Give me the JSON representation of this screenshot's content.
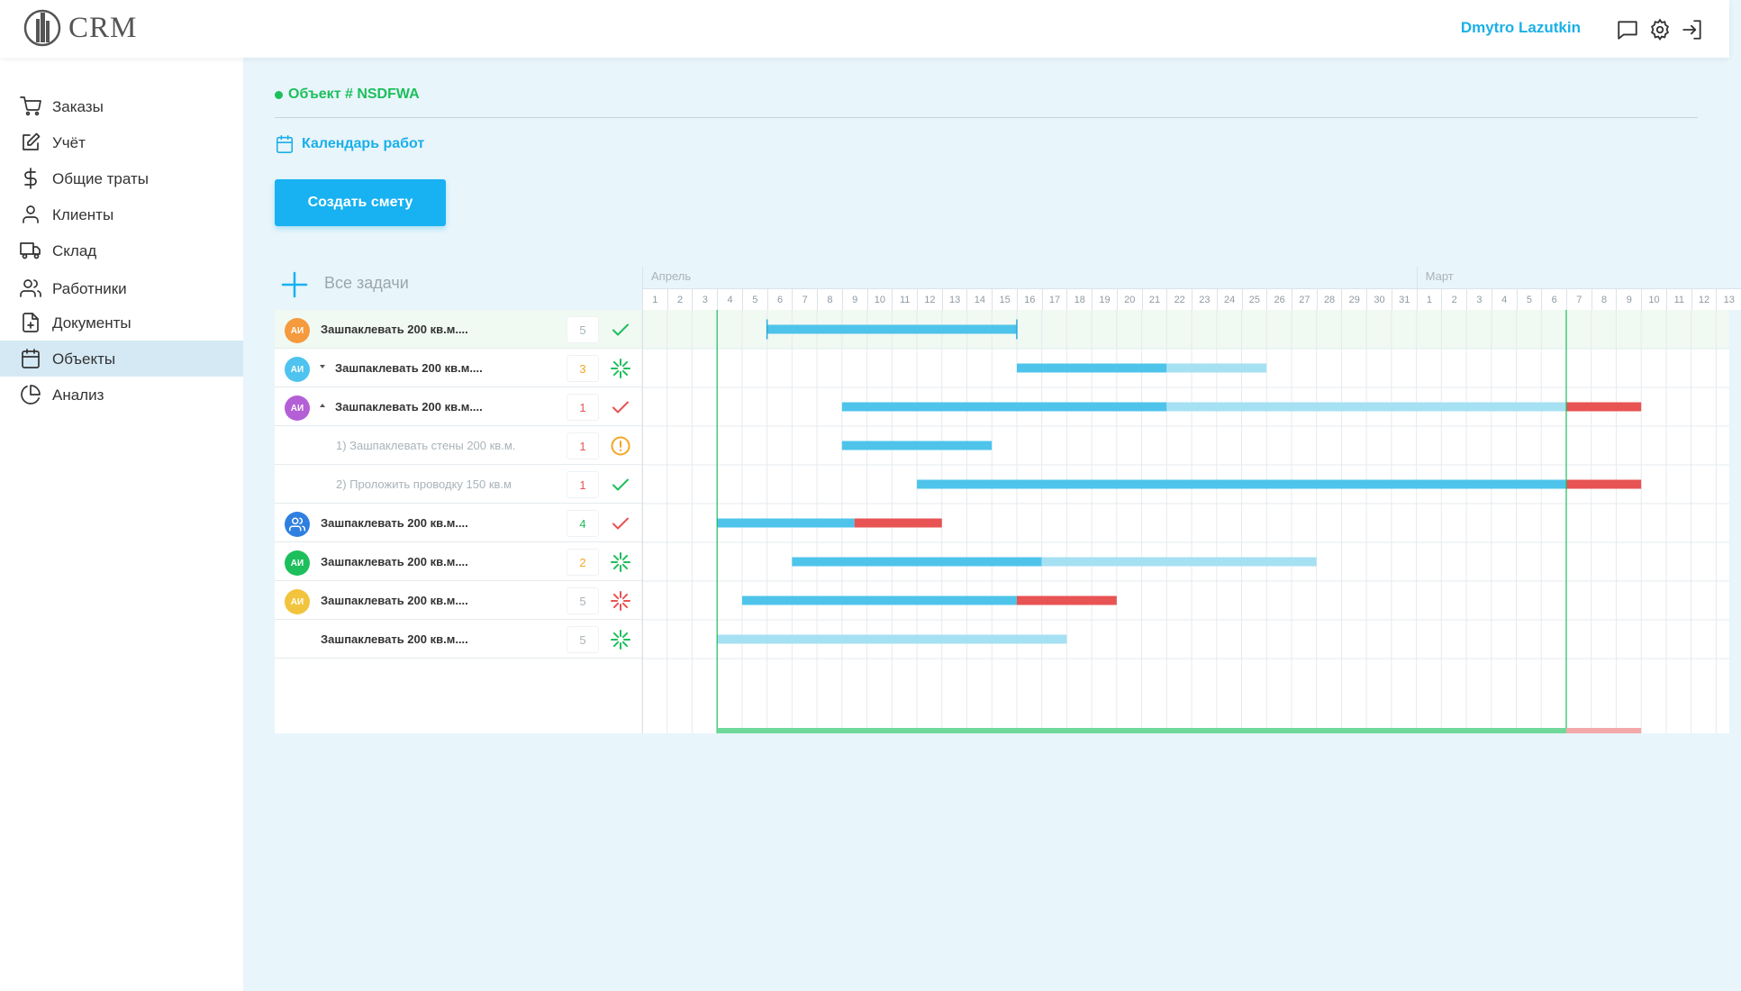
{
  "app": {
    "logo_text": "CRM",
    "user_name": "Dmytro Lazutkin"
  },
  "header_icons": [
    "chat-icon",
    "gear-icon",
    "logout-icon"
  ],
  "sidebar": {
    "items": [
      {
        "label": "Заказы",
        "icon": "cart-icon",
        "active": false
      },
      {
        "label": "Учёт",
        "icon": "edit-icon",
        "active": false
      },
      {
        "label": "Общие траты",
        "icon": "dollar-icon",
        "active": false
      },
      {
        "label": "Клиенты",
        "icon": "user-icon",
        "active": false
      },
      {
        "label": "Склад",
        "icon": "truck-icon",
        "active": false
      },
      {
        "label": "Работники",
        "icon": "users-icon",
        "active": false
      },
      {
        "label": "Документы",
        "icon": "file-plus-icon",
        "active": false
      },
      {
        "label": "Объекты",
        "icon": "calendar-icon",
        "active": true
      },
      {
        "label": "Анализ",
        "icon": "pie-chart-icon",
        "active": false
      }
    ]
  },
  "main": {
    "object_title": "Объект # NSDFWA",
    "calendar_link": "Календарь работ",
    "create_button": "Создать смету"
  },
  "gantt": {
    "all_tasks_label": "Все задачи",
    "months": [
      {
        "name": "Апрель",
        "start_index": 0
      },
      {
        "name": "Март",
        "start_index": 31
      }
    ],
    "days": [
      1,
      2,
      3,
      4,
      5,
      6,
      7,
      8,
      9,
      10,
      11,
      12,
      13,
      14,
      15,
      16,
      17,
      18,
      19,
      20,
      21,
      22,
      23,
      24,
      25,
      26,
      27,
      28,
      29,
      30,
      31,
      1,
      2,
      3,
      4,
      5,
      6,
      7,
      8,
      9,
      10,
      11,
      12,
      13
    ],
    "today_index": 3,
    "deadline_index": 37,
    "colors": {
      "done": "#4ec4eb",
      "planned": "#a6e0f3",
      "overdue": "#e85353",
      "green": "#1cbf5c",
      "orange": "#f5a623",
      "red": "#e85353"
    },
    "tasks": [
      {
        "name": "Зашпаклевать 200 кв.м....",
        "avatar": "АИ",
        "avatar_color": "#f59a3d",
        "count": "5",
        "count_color": "#a9b3b9",
        "status": "check-icon",
        "status_color": "#1cbf5c",
        "level": 0,
        "caret": "",
        "highlight": true,
        "bars": [
          {
            "start": 5,
            "end": 15,
            "type": "done",
            "bracket": true
          }
        ]
      },
      {
        "name": "Зашпаклевать 200 кв.м....",
        "avatar": "АИ",
        "avatar_color": "#4fc3ef",
        "count": "3",
        "count_color": "#f5a623",
        "status": "loading-icon",
        "status_color": "#1cbf5c",
        "level": 0,
        "caret": "down",
        "highlight": false,
        "bars": [
          {
            "start": 15,
            "end": 21,
            "type": "done"
          },
          {
            "start": 21,
            "end": 25,
            "type": "planned"
          }
        ]
      },
      {
        "name": "Зашпаклевать 200 кв.м....",
        "avatar": "АИ",
        "avatar_color": "#b45fd6",
        "count": "1",
        "count_color": "#e85353",
        "status": "check-icon",
        "status_color": "#e85353",
        "level": 0,
        "caret": "up",
        "highlight": false,
        "bars": [
          {
            "start": 8,
            "end": 21,
            "type": "done"
          },
          {
            "start": 21,
            "end": 37,
            "type": "planned"
          },
          {
            "start": 37,
            "end": 40,
            "type": "overdue"
          }
        ]
      },
      {
        "name": "1) Зашпаклевать стены 200 кв.м.",
        "avatar": "",
        "avatar_color": "",
        "count": "1",
        "count_color": "#e85353",
        "status": "alert-icon",
        "status_color": "#f5a623",
        "level": 1,
        "caret": "",
        "highlight": false,
        "bars": [
          {
            "start": 8,
            "end": 14,
            "type": "done"
          }
        ]
      },
      {
        "name": "2) Проложить проводку 150 кв.м",
        "avatar": "",
        "avatar_color": "",
        "count": "1",
        "count_color": "#e85353",
        "status": "check-icon",
        "status_color": "#1cbf5c",
        "level": 1,
        "caret": "",
        "highlight": false,
        "bars": [
          {
            "start": 11,
            "end": 37,
            "type": "done"
          },
          {
            "start": 37,
            "end": 40,
            "type": "overdue"
          }
        ]
      },
      {
        "name": "Зашпаклевать 200 кв.м....",
        "avatar": "group",
        "avatar_color": "#2f7fe0",
        "count": "4",
        "count_color": "#1cbf5c",
        "status": "check-icon",
        "status_color": "#e85353",
        "level": 0,
        "caret": "",
        "highlight": false,
        "bars": [
          {
            "start": 3,
            "end": 8.5,
            "type": "done"
          },
          {
            "start": 8.5,
            "end": 12,
            "type": "overdue"
          }
        ]
      },
      {
        "name": "Зашпаклевать 200 кв.м....",
        "avatar": "АИ",
        "avatar_color": "#1cbf5c",
        "count": "2",
        "count_color": "#f5a623",
        "status": "loading-icon",
        "status_color": "#1cbf5c",
        "level": 0,
        "caret": "",
        "highlight": false,
        "bars": [
          {
            "start": 6,
            "end": 16,
            "type": "done"
          },
          {
            "start": 16,
            "end": 27,
            "type": "planned"
          }
        ]
      },
      {
        "name": "Зашпаклевать 200 кв.м....",
        "avatar": "АИ",
        "avatar_color": "#f2c43d",
        "count": "5",
        "count_color": "#a9b3b9",
        "status": "loading-icon",
        "status_color": "#e85353",
        "level": 0,
        "caret": "",
        "highlight": false,
        "bars": [
          {
            "start": 4,
            "end": 15,
            "type": "done"
          },
          {
            "start": 15,
            "end": 19,
            "type": "overdue"
          }
        ]
      },
      {
        "name": "Зашпаклевать 200 кв.м....",
        "avatar": "",
        "avatar_color": "",
        "count": "5",
        "count_color": "#a9b3b9",
        "status": "loading-icon",
        "status_color": "#1cbf5c",
        "level": 0,
        "caret": "",
        "highlight": false,
        "bars": [
          {
            "start": 3,
            "end": 17,
            "type": "planned"
          }
        ]
      }
    ]
  }
}
